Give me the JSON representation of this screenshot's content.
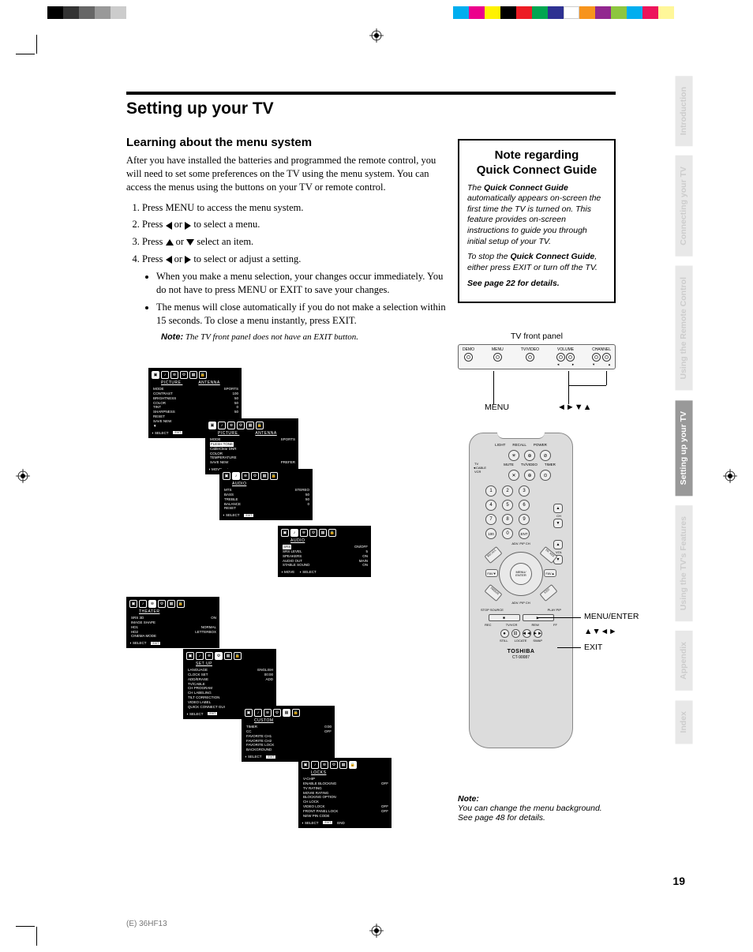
{
  "page_number": "19",
  "footer_id": "(E) 36HF13",
  "colorbar": [
    "#000000",
    "#333333",
    "#666666",
    "#999999",
    "#cccccc",
    "#ffffff",
    "#ffffff",
    "#ffffff",
    "#ffffff",
    "#ffffff",
    "#ffffff",
    "#ffffff",
    "#ffffff",
    "#ffffff",
    "#ffffff",
    "#ffffff",
    "#ffffff",
    "#ffffff",
    "#ffffff",
    "#ffffff",
    "#ffffff",
    "#ffffff",
    "#ffffff",
    "#ffffff",
    "#00aeef",
    "#ec008c",
    "#fff200",
    "#000000",
    "#ed1c24",
    "#00a651",
    "#2e3192",
    "#ffffff",
    "#f7941d",
    "#92278f",
    "#8dc63f",
    "#00aeef",
    "#ed145b",
    "#fff799"
  ],
  "title": "Setting up your TV",
  "subtitle": "Learning about the menu system",
  "intro": "After you have installed the batteries and programmed the remote control, you will need to set some preferences on the TV using the menu system. You can access the menus using the buttons on your TV or remote control.",
  "steps": {
    "s1": "Press MENU to access the menu system.",
    "s2a": "Press ",
    "s2b": " or ",
    "s2c": " to select a menu.",
    "s3a": "Press ",
    "s3b": " or ",
    "s3c": " select an item.",
    "s4a": "Press ",
    "s4b": " or ",
    "s4c": " to select or adjust a setting."
  },
  "bullets": {
    "b1": "When you make a menu selection, your changes occur immediately. You do not have to press MENU or EXIT to save your changes.",
    "b2": "The menus will close automatically if you do not make a selection within 15 seconds. To close a menu instantly, press EXIT."
  },
  "note_label": "Note:",
  "note_text": " The TV front panel does not have an EXIT button.",
  "notebox": {
    "title1": "Note regarding",
    "title2": "Quick Connect Guide",
    "p1a": "The ",
    "p1b": "Quick Connect Guide",
    "p1c": " automatically appears on-screen the first time the TV is turned on. This feature provides on-screen instructions to guide you through initial setup of your TV.",
    "p2a": "To stop the ",
    "p2b": "Quick Connect Guide",
    "p2c": ", either press EXIT or turn off the TV.",
    "see": "See page 22 for details."
  },
  "front_panel": {
    "label": "TV front panel",
    "buttons": [
      "DEMO",
      "MENU",
      "TV/VIDEO",
      "VOLUME",
      "CHANNEL"
    ],
    "menu_label": "MENU",
    "arrows_label": "◄►▼▲"
  },
  "remote": {
    "top_row": [
      "LIGHT",
      "RECALL",
      "POWER"
    ],
    "row2": [
      "MUTE",
      "TV/VIDEO",
      "TIMER"
    ],
    "switch": [
      "TV",
      "CABLE",
      "VCR"
    ],
    "numbers": [
      "1",
      "2",
      "3",
      "4",
      "5",
      "6",
      "7",
      "8",
      "9",
      "100",
      "0",
      "ENT"
    ],
    "ch": "CH",
    "vol": "VOL",
    "nav_center": "MENU/\nENTER",
    "fav_l": "FAV▼",
    "fav_r": "FAV▲",
    "pip_top": "ADV. PIP CH",
    "pip_bot": "ADV. PIP CH",
    "stop_source": "STOP SOURCE",
    "play_pip": "PLAY PIP",
    "transport_labels": [
      "REC",
      "TV/VCR",
      "REW",
      "FF"
    ],
    "bottom_labels": [
      "STILL",
      "LOCATE",
      "SWAP"
    ],
    "brand": "TOSHIBA",
    "model": "CT-90087",
    "callout_menu": "MENU/ENTER",
    "callout_arrows": "▲▼◄►",
    "callout_exit": "EXIT"
  },
  "bottom_note": {
    "label": "Note:",
    "text1": "You can change the menu background.",
    "text2": "See page 48 for details."
  },
  "tabs": [
    "Introduction",
    "Connecting your TV",
    "Using the Remote Control",
    "Setting up your TV",
    "Using the TV's Features",
    "Appendix",
    "Index"
  ],
  "menus": {
    "picture": {
      "title": "PICTURE",
      "title2": "ANTENNA",
      "mode": "MODE",
      "mode_v": "SPORTS",
      "rows": [
        [
          "CONTRAST",
          "100"
        ],
        [
          "BRIGHTNESS",
          "50"
        ],
        [
          "COLOR",
          "50"
        ],
        [
          "TINT",
          "0"
        ],
        [
          "SHARPNESS",
          "50"
        ],
        [
          "RESET",
          ""
        ],
        [
          "SAVE NEW",
          "PREFER"
        ],
        [
          "▼",
          ""
        ]
      ],
      "foot": [
        "◗ SELECT",
        "EXIT"
      ]
    },
    "picture2": {
      "title": "PICTURE",
      "title2": "ANTENNA",
      "mode": "MODE",
      "mode_v": "SPORTS",
      "rows": [
        [
          "FLESH TONE",
          ""
        ],
        [
          "CableClear DNR",
          ""
        ],
        [
          "COLOR",
          ""
        ],
        [
          "TEMPERATURE",
          ""
        ],
        [
          "SAVE NEW",
          "PREFER"
        ]
      ],
      "foot": [
        "◗ MOVE",
        "◗"
      ]
    },
    "audio": {
      "title": "AUDIO",
      "rows": [
        [
          "MTS",
          "STEREO"
        ],
        [
          "BASS",
          "50"
        ],
        [
          "TREBLE",
          "50"
        ],
        [
          "BALANCE",
          "0"
        ],
        [
          "RESET",
          ""
        ]
      ],
      "foot": [
        "◗ SELECT",
        "EXIT"
      ]
    },
    "audio2": {
      "title": "AUDIO",
      "rows": [
        [
          "SRS",
          "ON/OFF"
        ],
        [
          "SRS LEVEL",
          "5"
        ],
        [
          "SPEAKERS",
          "ON"
        ],
        [
          "AUDIO OUT",
          "MAIN"
        ],
        [
          "STABLE SOUND",
          "ON"
        ]
      ],
      "foot": [
        "◗ MOVE",
        "◗ SELECT"
      ]
    },
    "theater": {
      "title": "THEATER",
      "rows": [
        [
          "SRS 3D",
          "ON"
        ],
        [
          "IMAGE SHAPE",
          ""
        ],
        [
          "HD1",
          "NORMAL"
        ],
        [
          "HD2",
          "LETTERBOX"
        ],
        [
          "CINEMA MODE",
          ""
        ]
      ],
      "foot": [
        "◗ SELECT",
        "EXIT"
      ]
    },
    "setup": {
      "title": "SET UP",
      "rows": [
        [
          "LANGUAGE",
          "ENGLISH"
        ],
        [
          "CLOCK SET",
          "00:00"
        ],
        [
          "ADD/ERASE",
          "ADD"
        ],
        [
          "TV/CABLE",
          ""
        ],
        [
          "CH PROGRAM",
          ""
        ],
        [
          "CH LABELING",
          ""
        ],
        [
          "TILT CORRECTION",
          ""
        ],
        [
          "VIDEO LABEL",
          ""
        ],
        [
          "QUICK CONNECT GUI",
          ""
        ]
      ],
      "foot": [
        "◗ SELECT",
        "EXIT"
      ]
    },
    "custom": {
      "title": "CUSTOM",
      "rows": [
        [
          "TIMER",
          "0:00"
        ],
        [
          "CC",
          "OFF"
        ],
        [
          "FAVORITE CH1",
          ""
        ],
        [
          "FAVORITE CH2",
          ""
        ],
        [
          "FAVORITE LOCK",
          ""
        ],
        [
          "BACKGROUND",
          ""
        ]
      ],
      "foot": [
        "◗ SELECT",
        "EXIT"
      ]
    },
    "locks": {
      "title": "LOCKS",
      "rows": [
        [
          "V-CHIP",
          ""
        ],
        [
          "ENABLE BLOCKING",
          "OFF"
        ],
        [
          "TV RATING",
          ""
        ],
        [
          "MOVIE RATING",
          ""
        ],
        [
          "BLOCKING OPTION",
          ""
        ],
        [
          "CH LOCK",
          ""
        ],
        [
          "VIDEO LOCK",
          "OFF"
        ],
        [
          "FRONT PANEL LOCK",
          "OFF"
        ],
        [
          "NEW PIN CODE",
          ""
        ]
      ],
      "foot": [
        "◗ SELECT",
        "EXIT",
        "END"
      ]
    }
  }
}
